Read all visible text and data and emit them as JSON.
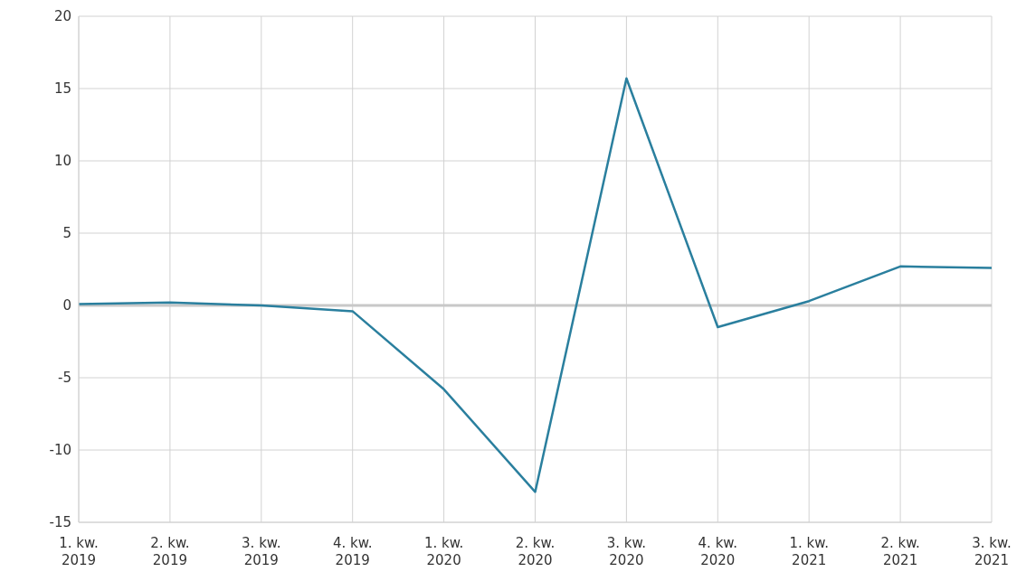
{
  "chart_data": {
    "type": "line",
    "categories": [
      "1. kw. 2019",
      "2. kw. 2019",
      "3. kw. 2019",
      "4. kw. 2019",
      "1. kw. 2020",
      "2. kw. 2020",
      "3. kw. 2020",
      "4. kw. 2020",
      "1. kw. 2021",
      "2. kw. 2021",
      "3. kw. 2021"
    ],
    "series": [
      {
        "color": "#2a7f9e",
        "values": [
          0.1,
          0.2,
          0,
          -0.4,
          -5.8,
          -12.9,
          15.7,
          -1.5,
          0.3,
          2.7,
          2.6
        ]
      }
    ],
    "ylim": [
      -15,
      20
    ],
    "yticks": [
      -15,
      -10,
      -5,
      0,
      5,
      10,
      15,
      20
    ],
    "grid": true,
    "legend": false,
    "marker": "none",
    "line_style": "solid",
    "ref_lines": [
      {
        "axis": "y",
        "value": 0,
        "color": "#c8c8c8"
      }
    ]
  }
}
